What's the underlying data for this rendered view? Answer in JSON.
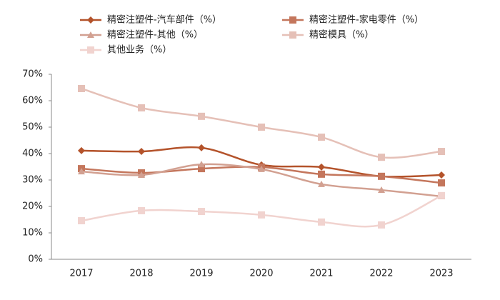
{
  "chart_data": {
    "type": "line",
    "categories": [
      "2017",
      "2018",
      "2019",
      "2020",
      "2021",
      "2022",
      "2023"
    ],
    "series": [
      {
        "name": "精密注塑件-汽车部件（%）",
        "color": "#b4532b",
        "marker": "diamond",
        "values": [
          41.1,
          40.8,
          42.2,
          35.7,
          34.9,
          31.4,
          31.9
        ]
      },
      {
        "name": "精密注塑件-家电零件（%）",
        "color": "#c4765c",
        "marker": "square",
        "values": [
          34.3,
          32.7,
          34.3,
          34.9,
          32.2,
          31.4,
          28.9
        ]
      },
      {
        "name": "精密注塑件-其他（%）",
        "color": "#d2a091",
        "marker": "triangle",
        "values": [
          33.2,
          31.9,
          35.9,
          34.1,
          28.4,
          26.2,
          23.8
        ]
      },
      {
        "name": "精密模具（%）",
        "color": "#e5c0b7",
        "marker": "square",
        "values": [
          64.6,
          57.3,
          54.1,
          50.0,
          46.2,
          38.6,
          40.8
        ]
      },
      {
        "name": "其他业务（%）",
        "color": "#f1d3cf",
        "marker": "square",
        "values": [
          14.6,
          18.4,
          18.1,
          16.8,
          14.1,
          13.0,
          24.1
        ]
      }
    ],
    "ylim": [
      0,
      70
    ],
    "yticks": [
      {
        "value": 0,
        "label": "0%"
      },
      {
        "value": 10,
        "label": "10%"
      },
      {
        "value": 20,
        "label": "20%"
      },
      {
        "value": 30,
        "label": "30%"
      },
      {
        "value": 40,
        "label": "40%"
      },
      {
        "value": 50,
        "label": "50%"
      },
      {
        "value": 60,
        "label": "60%"
      },
      {
        "value": 70,
        "label": "70%"
      }
    ],
    "grid": false,
    "smooth": true
  }
}
